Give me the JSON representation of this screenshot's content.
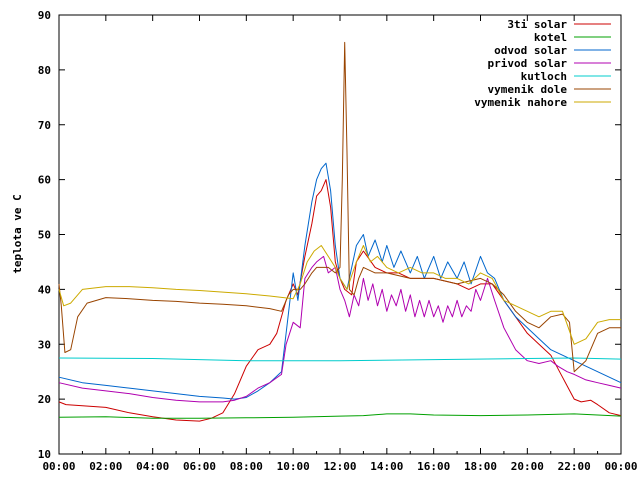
{
  "chart_data": {
    "type": "line",
    "title": "",
    "xlabel": "",
    "ylabel": "teplota ve C",
    "xlim": [
      "00:00",
      "24:00"
    ],
    "ylim": [
      10,
      90
    ],
    "xticks": [
      "00:00",
      "02:00",
      "04:00",
      "06:00",
      "08:00",
      "10:00",
      "12:00",
      "14:00",
      "16:00",
      "18:00",
      "20:00",
      "22:00",
      "00:00"
    ],
    "yticks": [
      10,
      20,
      30,
      40,
      50,
      60,
      70,
      80,
      90
    ],
    "grid": false,
    "legend_position": "top-right",
    "series": [
      {
        "name": "3ti solar",
        "color": "#cc0000",
        "points": [
          [
            0,
            19.5
          ],
          [
            0.3,
            19
          ],
          [
            1,
            18.8
          ],
          [
            2,
            18.5
          ],
          [
            3,
            17.5
          ],
          [
            4,
            16.8
          ],
          [
            5,
            16.2
          ],
          [
            6,
            16
          ],
          [
            6.5,
            16.5
          ],
          [
            7,
            17.5
          ],
          [
            7.5,
            21
          ],
          [
            8,
            26
          ],
          [
            8.5,
            29
          ],
          [
            9,
            30
          ],
          [
            9.3,
            32
          ],
          [
            9.7,
            38
          ],
          [
            10,
            41
          ],
          [
            10.2,
            39
          ],
          [
            10.5,
            46
          ],
          [
            10.8,
            52
          ],
          [
            11,
            57
          ],
          [
            11.2,
            58
          ],
          [
            11.4,
            60
          ],
          [
            11.6,
            55
          ],
          [
            11.8,
            45
          ],
          [
            12,
            42
          ],
          [
            12.2,
            40
          ],
          [
            12.5,
            39
          ],
          [
            12.7,
            45
          ],
          [
            13,
            47
          ],
          [
            13.5,
            44
          ],
          [
            14,
            43
          ],
          [
            14.5,
            43
          ],
          [
            15,
            42
          ],
          [
            16,
            42
          ],
          [
            17,
            41
          ],
          [
            17.5,
            40
          ],
          [
            18,
            41
          ],
          [
            18.5,
            41
          ],
          [
            19,
            38
          ],
          [
            19.5,
            35
          ],
          [
            20,
            32
          ],
          [
            20.5,
            30
          ],
          [
            21,
            28
          ],
          [
            21.5,
            24
          ],
          [
            22,
            20
          ],
          [
            22.3,
            19.5
          ],
          [
            22.7,
            19.8
          ],
          [
            23,
            19
          ],
          [
            23.5,
            17.5
          ],
          [
            24,
            17
          ]
        ]
      },
      {
        "name": "kotel",
        "color": "#00a000",
        "points": [
          [
            0,
            16.7
          ],
          [
            2,
            16.8
          ],
          [
            4,
            16.5
          ],
          [
            6,
            16.5
          ],
          [
            8,
            16.6
          ],
          [
            10,
            16.7
          ],
          [
            12,
            16.9
          ],
          [
            13,
            17
          ],
          [
            14,
            17.3
          ],
          [
            15,
            17.3
          ],
          [
            16,
            17.1
          ],
          [
            18,
            17
          ],
          [
            20,
            17.1
          ],
          [
            22,
            17.3
          ],
          [
            24,
            16.9
          ]
        ]
      },
      {
        "name": "odvod solar",
        "color": "#0066cc",
        "points": [
          [
            0,
            24
          ],
          [
            1,
            23
          ],
          [
            2,
            22.5
          ],
          [
            3,
            22
          ],
          [
            4,
            21.5
          ],
          [
            5,
            21
          ],
          [
            6,
            20.5
          ],
          [
            7,
            20.2
          ],
          [
            7.5,
            20
          ],
          [
            8,
            20.3
          ],
          [
            8.5,
            21.5
          ],
          [
            9,
            23
          ],
          [
            9.5,
            25
          ],
          [
            9.7,
            32
          ],
          [
            10,
            43
          ],
          [
            10.2,
            38
          ],
          [
            10.5,
            48
          ],
          [
            10.8,
            56
          ],
          [
            11,
            60
          ],
          [
            11.2,
            62
          ],
          [
            11.4,
            63
          ],
          [
            11.6,
            58
          ],
          [
            11.8,
            48
          ],
          [
            12,
            42
          ],
          [
            12.3,
            40
          ],
          [
            12.7,
            48
          ],
          [
            13,
            50
          ],
          [
            13.2,
            46
          ],
          [
            13.5,
            49
          ],
          [
            13.8,
            45
          ],
          [
            14,
            48
          ],
          [
            14.3,
            44
          ],
          [
            14.6,
            47
          ],
          [
            15,
            43
          ],
          [
            15.3,
            46
          ],
          [
            15.6,
            42
          ],
          [
            16,
            46
          ],
          [
            16.3,
            42
          ],
          [
            16.6,
            45
          ],
          [
            17,
            42
          ],
          [
            17.3,
            45
          ],
          [
            17.6,
            41
          ],
          [
            18,
            46
          ],
          [
            18.3,
            43
          ],
          [
            18.6,
            42
          ],
          [
            19,
            38
          ],
          [
            19.5,
            35
          ],
          [
            20,
            33
          ],
          [
            20.5,
            31
          ],
          [
            21,
            29
          ],
          [
            21.5,
            28
          ],
          [
            22,
            27
          ],
          [
            22.5,
            26
          ],
          [
            23,
            25
          ],
          [
            23.5,
            24
          ],
          [
            24,
            23
          ]
        ]
      },
      {
        "name": "privod solar",
        "color": "#b000b0",
        "points": [
          [
            0,
            23
          ],
          [
            1,
            22
          ],
          [
            2,
            21.5
          ],
          [
            3,
            21
          ],
          [
            4,
            20.3
          ],
          [
            5,
            19.8
          ],
          [
            6,
            19.5
          ],
          [
            7,
            19.5
          ],
          [
            7.5,
            19.8
          ],
          [
            8,
            20.5
          ],
          [
            8.5,
            22
          ],
          [
            9,
            23
          ],
          [
            9.5,
            24.5
          ],
          [
            9.7,
            30
          ],
          [
            10,
            34
          ],
          [
            10.3,
            33
          ],
          [
            10.5,
            42
          ],
          [
            10.8,
            44
          ],
          [
            11,
            45
          ],
          [
            11.3,
            46
          ],
          [
            11.5,
            43
          ],
          [
            11.8,
            44
          ],
          [
            12,
            40
          ],
          [
            12.2,
            38
          ],
          [
            12.4,
            35
          ],
          [
            12.6,
            39
          ],
          [
            12.8,
            37
          ],
          [
            13,
            42
          ],
          [
            13.2,
            38
          ],
          [
            13.4,
            41
          ],
          [
            13.6,
            37
          ],
          [
            13.8,
            40
          ],
          [
            14,
            36
          ],
          [
            14.2,
            39
          ],
          [
            14.4,
            37
          ],
          [
            14.6,
            40
          ],
          [
            14.8,
            36
          ],
          [
            15,
            39
          ],
          [
            15.2,
            35
          ],
          [
            15.4,
            38
          ],
          [
            15.6,
            35
          ],
          [
            15.8,
            38
          ],
          [
            16,
            35
          ],
          [
            16.2,
            37
          ],
          [
            16.4,
            34
          ],
          [
            16.6,
            37
          ],
          [
            16.8,
            35
          ],
          [
            17,
            38
          ],
          [
            17.2,
            35
          ],
          [
            17.4,
            37
          ],
          [
            17.6,
            36
          ],
          [
            17.8,
            40
          ],
          [
            18,
            38
          ],
          [
            18.3,
            42
          ],
          [
            18.6,
            38
          ],
          [
            19,
            33
          ],
          [
            19.5,
            29
          ],
          [
            20,
            27
          ],
          [
            20.5,
            26.5
          ],
          [
            21,
            27
          ],
          [
            21.3,
            26
          ],
          [
            21.7,
            25
          ],
          [
            22,
            24.5
          ],
          [
            22.5,
            23.5
          ],
          [
            23,
            23
          ],
          [
            23.5,
            22.5
          ],
          [
            24,
            22
          ]
        ]
      },
      {
        "name": "kutloch",
        "color": "#00cccc",
        "points": [
          [
            0,
            27.5
          ],
          [
            4,
            27.4
          ],
          [
            8,
            27
          ],
          [
            12,
            27
          ],
          [
            16,
            27.2
          ],
          [
            20,
            27.4
          ],
          [
            22,
            27.5
          ],
          [
            24,
            27.3
          ]
        ]
      },
      {
        "name": "vymenik dole",
        "color": "#994400",
        "points": [
          [
            0,
            41
          ],
          [
            0.1,
            37
          ],
          [
            0.25,
            28.5
          ],
          [
            0.5,
            29
          ],
          [
            0.8,
            35
          ],
          [
            1.2,
            37.5
          ],
          [
            2,
            38.5
          ],
          [
            3,
            38.3
          ],
          [
            4,
            38
          ],
          [
            5,
            37.8
          ],
          [
            6,
            37.5
          ],
          [
            7,
            37.3
          ],
          [
            8,
            37
          ],
          [
            9,
            36.5
          ],
          [
            9.5,
            36
          ],
          [
            9.8,
            39
          ],
          [
            10,
            40
          ],
          [
            10.3,
            40
          ],
          [
            10.5,
            41
          ],
          [
            10.8,
            43
          ],
          [
            11,
            44
          ],
          [
            11.5,
            44
          ],
          [
            11.8,
            43
          ],
          [
            12,
            44
          ],
          [
            12.1,
            60
          ],
          [
            12.2,
            85
          ],
          [
            12.3,
            65
          ],
          [
            12.4,
            40
          ],
          [
            12.6,
            39
          ],
          [
            12.8,
            42
          ],
          [
            13,
            44
          ],
          [
            13.5,
            43
          ],
          [
            14,
            43
          ],
          [
            15,
            42
          ],
          [
            16,
            42
          ],
          [
            17,
            41
          ],
          [
            18,
            42
          ],
          [
            18.5,
            41
          ],
          [
            19,
            39
          ],
          [
            19.5,
            36
          ],
          [
            20,
            34
          ],
          [
            20.5,
            33
          ],
          [
            21,
            35
          ],
          [
            21.5,
            35.5
          ],
          [
            21.8,
            34
          ],
          [
            22,
            25
          ],
          [
            22.5,
            27
          ],
          [
            23,
            32
          ],
          [
            23.5,
            33
          ],
          [
            24,
            33
          ]
        ]
      },
      {
        "name": "vymenik nahore",
        "color": "#ccaa00",
        "points": [
          [
            0,
            40
          ],
          [
            0.2,
            37
          ],
          [
            0.5,
            37.5
          ],
          [
            1,
            40
          ],
          [
            2,
            40.5
          ],
          [
            3,
            40.5
          ],
          [
            4,
            40.3
          ],
          [
            5,
            40
          ],
          [
            6,
            39.8
          ],
          [
            7,
            39.5
          ],
          [
            8,
            39.2
          ],
          [
            9,
            38.8
          ],
          [
            10,
            38.3
          ],
          [
            10.3,
            41
          ],
          [
            10.6,
            45
          ],
          [
            10.9,
            47
          ],
          [
            11.2,
            48
          ],
          [
            11.5,
            46
          ],
          [
            11.8,
            44
          ],
          [
            12,
            42
          ],
          [
            12.3,
            40
          ],
          [
            12.7,
            45
          ],
          [
            13,
            48
          ],
          [
            13.3,
            45
          ],
          [
            13.6,
            46
          ],
          [
            14,
            44
          ],
          [
            14.5,
            43
          ],
          [
            15,
            44
          ],
          [
            15.5,
            43
          ],
          [
            16,
            43
          ],
          [
            16.5,
            42
          ],
          [
            17,
            42
          ],
          [
            17.5,
            41
          ],
          [
            18,
            43
          ],
          [
            18.5,
            42
          ],
          [
            19,
            38
          ],
          [
            19.5,
            37
          ],
          [
            20,
            36
          ],
          [
            20.5,
            35
          ],
          [
            21,
            36
          ],
          [
            21.5,
            36
          ],
          [
            22,
            30
          ],
          [
            22.5,
            31
          ],
          [
            23,
            34
          ],
          [
            23.5,
            34.5
          ],
          [
            24,
            34.5
          ]
        ]
      }
    ]
  }
}
